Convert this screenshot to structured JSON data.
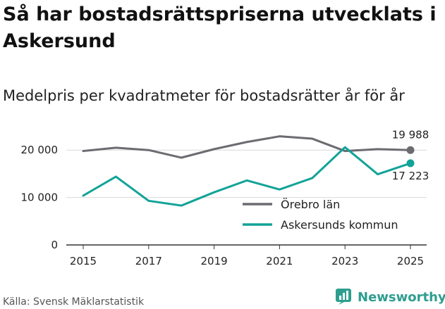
{
  "chart_data": {
    "type": "line",
    "title": "Så har bostadsrättspriserna utvecklats i Askersund",
    "subtitle": "Medelpris per kvadratmeter för bostadsrätter år för år",
    "x": [
      2015,
      2016,
      2017,
      2018,
      2019,
      2020,
      2021,
      2022,
      2023,
      2024,
      2025
    ],
    "x_ticks": [
      2015,
      2017,
      2019,
      2021,
      2023,
      2025
    ],
    "y_ticks": [
      0,
      10000,
      20000
    ],
    "y_tick_labels": [
      "0",
      "10 000",
      "20 000"
    ],
    "ylim": [
      0,
      23000
    ],
    "series": [
      {
        "name": "Örebro län",
        "color": "#6b6b70",
        "values": [
          19800,
          20500,
          20000,
          18400,
          20200,
          21700,
          22900,
          22400,
          19800,
          20200,
          19988
        ],
        "end_label": "19 988"
      },
      {
        "name": "Askersunds kommun",
        "color": "#12a398",
        "values": [
          10400,
          14400,
          9300,
          8300,
          11100,
          13600,
          11700,
          14100,
          20600,
          14900,
          17223
        ],
        "end_label": "17 223"
      }
    ],
    "legend_position": "bottom-right",
    "source": "Källa: Svensk Mäklarstatistik"
  },
  "brand": {
    "name": "Newsworthy",
    "color": "#2e9e8f"
  }
}
